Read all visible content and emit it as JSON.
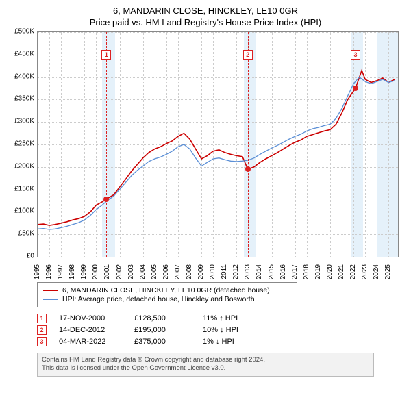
{
  "title": "6, MANDARIN CLOSE, HINCKLEY, LE10 0GR",
  "subtitle": "Price paid vs. HM Land Registry's House Price Index (HPI)",
  "chart": {
    "type": "line",
    "xlim": [
      1995,
      2025.8
    ],
    "ylim": [
      0,
      500000
    ],
    "ytick_step": 50000,
    "yticks_labels": [
      "£0",
      "£50K",
      "£100K",
      "£150K",
      "£200K",
      "£250K",
      "£300K",
      "£350K",
      "£400K",
      "£450K",
      "£500K"
    ],
    "xticks": [
      1995,
      1996,
      1997,
      1998,
      1999,
      2000,
      2001,
      2002,
      2003,
      2004,
      2005,
      2006,
      2007,
      2008,
      2009,
      2010,
      2011,
      2012,
      2013,
      2014,
      2015,
      2016,
      2017,
      2018,
      2019,
      2020,
      2021,
      2022,
      2023,
      2024,
      2025
    ],
    "background_color": "#ffffff",
    "grid_color": "#cccccc",
    "band_color": "#cfe6f5",
    "bands": [
      {
        "start": 2000.5,
        "end": 2001.6
      },
      {
        "start": 2012.6,
        "end": 2013.7
      },
      {
        "start": 2021.8,
        "end": 2022.8
      },
      {
        "start": 2024.0,
        "end": 2025.8
      }
    ],
    "markers": [
      {
        "n": "1",
        "x": 2000.88,
        "y": 128500,
        "box_y": 450000
      },
      {
        "n": "2",
        "x": 2012.96,
        "y": 195000,
        "box_y": 450000
      },
      {
        "n": "3",
        "x": 2022.17,
        "y": 375000,
        "box_y": 450000
      }
    ],
    "series": [
      {
        "name": "6, MANDARIN CLOSE, HINCKLEY, LE10 0GR (detached house)",
        "color": "#cc0000",
        "width": 1.6,
        "points": [
          [
            1995,
            72000
          ],
          [
            1995.5,
            73000
          ],
          [
            1996,
            70000
          ],
          [
            1996.5,
            72000
          ],
          [
            1997,
            75000
          ],
          [
            1997.5,
            78000
          ],
          [
            1998,
            82000
          ],
          [
            1998.5,
            85000
          ],
          [
            1999,
            90000
          ],
          [
            1999.5,
            100000
          ],
          [
            2000,
            115000
          ],
          [
            2000.5,
            122000
          ],
          [
            2000.88,
            128500
          ],
          [
            2001.5,
            138000
          ],
          [
            2002,
            155000
          ],
          [
            2002.5,
            172000
          ],
          [
            2003,
            190000
          ],
          [
            2003.5,
            205000
          ],
          [
            2004,
            220000
          ],
          [
            2004.5,
            232000
          ],
          [
            2005,
            240000
          ],
          [
            2005.5,
            245000
          ],
          [
            2006,
            252000
          ],
          [
            2006.5,
            258000
          ],
          [
            2007,
            268000
          ],
          [
            2007.5,
            275000
          ],
          [
            2008,
            262000
          ],
          [
            2008.5,
            240000
          ],
          [
            2009,
            218000
          ],
          [
            2009.5,
            225000
          ],
          [
            2010,
            235000
          ],
          [
            2010.5,
            238000
          ],
          [
            2011,
            232000
          ],
          [
            2011.5,
            228000
          ],
          [
            2012,
            225000
          ],
          [
            2012.5,
            223000
          ],
          [
            2012.96,
            195000
          ],
          [
            2013.5,
            200000
          ],
          [
            2014,
            210000
          ],
          [
            2014.5,
            218000
          ],
          [
            2015,
            225000
          ],
          [
            2015.5,
            232000
          ],
          [
            2016,
            240000
          ],
          [
            2016.5,
            248000
          ],
          [
            2017,
            255000
          ],
          [
            2017.5,
            260000
          ],
          [
            2018,
            268000
          ],
          [
            2018.5,
            272000
          ],
          [
            2019,
            276000
          ],
          [
            2019.5,
            280000
          ],
          [
            2020,
            283000
          ],
          [
            2020.5,
            295000
          ],
          [
            2021,
            320000
          ],
          [
            2021.5,
            350000
          ],
          [
            2022.17,
            375000
          ],
          [
            2022.7,
            415000
          ],
          [
            2023,
            395000
          ],
          [
            2023.5,
            388000
          ],
          [
            2024,
            392000
          ],
          [
            2024.5,
            398000
          ],
          [
            2025,
            388000
          ],
          [
            2025.5,
            395000
          ]
        ]
      },
      {
        "name": "HPI: Average price, detached house, Hinckley and Bosworth",
        "color": "#5b8fd6",
        "width": 1.3,
        "points": [
          [
            1995,
            62000
          ],
          [
            1995.5,
            63000
          ],
          [
            1996,
            61000
          ],
          [
            1996.5,
            62000
          ],
          [
            1997,
            65000
          ],
          [
            1997.5,
            68000
          ],
          [
            1998,
            72000
          ],
          [
            1998.5,
            76000
          ],
          [
            1999,
            82000
          ],
          [
            1999.5,
            92000
          ],
          [
            2000,
            105000
          ],
          [
            2000.5,
            115000
          ],
          [
            2001,
            126000
          ],
          [
            2001.5,
            135000
          ],
          [
            2002,
            150000
          ],
          [
            2002.5,
            165000
          ],
          [
            2003,
            180000
          ],
          [
            2003.5,
            192000
          ],
          [
            2004,
            202000
          ],
          [
            2004.5,
            212000
          ],
          [
            2005,
            218000
          ],
          [
            2005.5,
            222000
          ],
          [
            2006,
            228000
          ],
          [
            2006.5,
            235000
          ],
          [
            2007,
            245000
          ],
          [
            2007.5,
            250000
          ],
          [
            2008,
            240000
          ],
          [
            2008.5,
            220000
          ],
          [
            2009,
            202000
          ],
          [
            2009.5,
            210000
          ],
          [
            2010,
            218000
          ],
          [
            2010.5,
            220000
          ],
          [
            2011,
            216000
          ],
          [
            2011.5,
            213000
          ],
          [
            2012,
            212000
          ],
          [
            2012.5,
            213000
          ],
          [
            2013,
            215000
          ],
          [
            2013.5,
            220000
          ],
          [
            2014,
            228000
          ],
          [
            2014.5,
            235000
          ],
          [
            2015,
            242000
          ],
          [
            2015.5,
            248000
          ],
          [
            2016,
            255000
          ],
          [
            2016.5,
            262000
          ],
          [
            2017,
            268000
          ],
          [
            2017.5,
            273000
          ],
          [
            2018,
            280000
          ],
          [
            2018.5,
            285000
          ],
          [
            2019,
            288000
          ],
          [
            2019.5,
            292000
          ],
          [
            2020,
            295000
          ],
          [
            2020.5,
            308000
          ],
          [
            2021,
            330000
          ],
          [
            2021.5,
            358000
          ],
          [
            2022,
            385000
          ],
          [
            2022.5,
            400000
          ],
          [
            2023,
            390000
          ],
          [
            2023.5,
            385000
          ],
          [
            2024,
            390000
          ],
          [
            2024.5,
            395000
          ],
          [
            2025,
            388000
          ],
          [
            2025.5,
            392000
          ]
        ]
      }
    ]
  },
  "legend": {
    "items": [
      {
        "color": "#cc0000",
        "label": "6, MANDARIN CLOSE, HINCKLEY, LE10 0GR (detached house)"
      },
      {
        "color": "#5b8fd6",
        "label": "HPI: Average price, detached house, Hinckley and Bosworth"
      }
    ]
  },
  "sales": [
    {
      "n": "1",
      "date": "17-NOV-2000",
      "price": "£128,500",
      "hpi": "11% ↑ HPI"
    },
    {
      "n": "2",
      "date": "14-DEC-2012",
      "price": "£195,000",
      "hpi": "10% ↓ HPI"
    },
    {
      "n": "3",
      "date": "04-MAR-2022",
      "price": "£375,000",
      "hpi": "1% ↓ HPI"
    }
  ],
  "footer": {
    "line1": "Contains HM Land Registry data © Crown copyright and database right 2024.",
    "line2": "This data is licensed under the Open Government Licence v3.0."
  }
}
